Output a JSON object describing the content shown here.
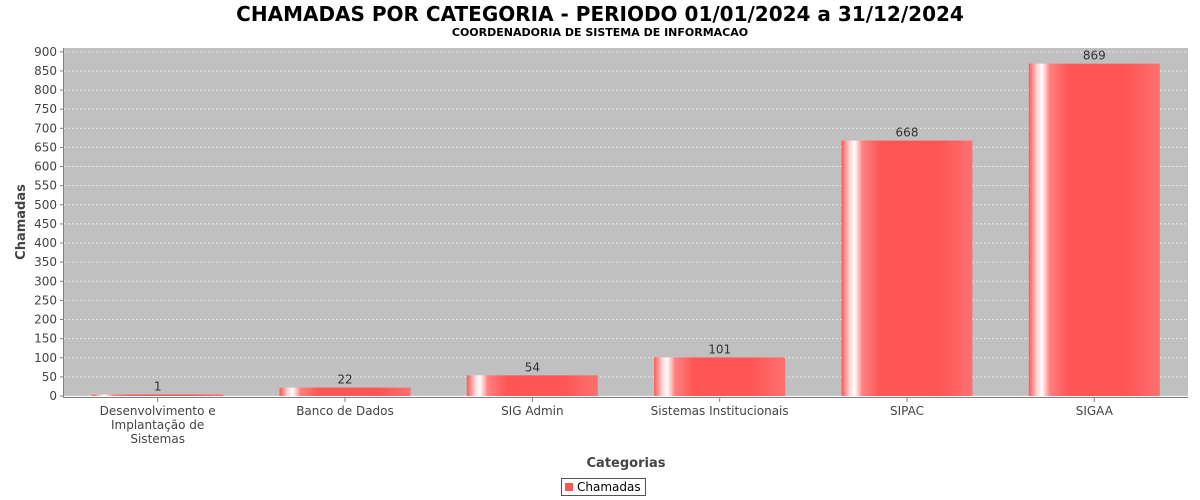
{
  "colors": {
    "bar": "#ff5555",
    "plot_bg": "#c0c0c0",
    "grid": "#e8e8e8"
  },
  "chart_data": {
    "type": "bar",
    "title": "CHAMADAS POR CATEGORIA - PERIODO 01/01/2024 a 31/12/2024",
    "subtitle": "COORDENADORIA DE SISTEMA DE INFORMACAO",
    "xlabel": "Categorias",
    "ylabel": "Chamadas",
    "categories": [
      [
        "Desenvolvimento e",
        "Implantação de",
        "Sistemas"
      ],
      [
        "Banco de Dados"
      ],
      [
        "SIG Admin"
      ],
      [
        "Sistemas Institucionais"
      ],
      [
        "SIPAC"
      ],
      [
        "SIGAA"
      ]
    ],
    "series": [
      {
        "name": "Chamadas",
        "values": [
          1,
          22,
          54,
          101,
          668,
          869
        ]
      }
    ],
    "ylim": [
      0,
      910
    ],
    "yticks": [
      0,
      50,
      100,
      150,
      200,
      250,
      300,
      350,
      400,
      450,
      500,
      550,
      600,
      650,
      700,
      750,
      800,
      850,
      900
    ],
    "grid": true,
    "legend_position": "bottom-center"
  }
}
